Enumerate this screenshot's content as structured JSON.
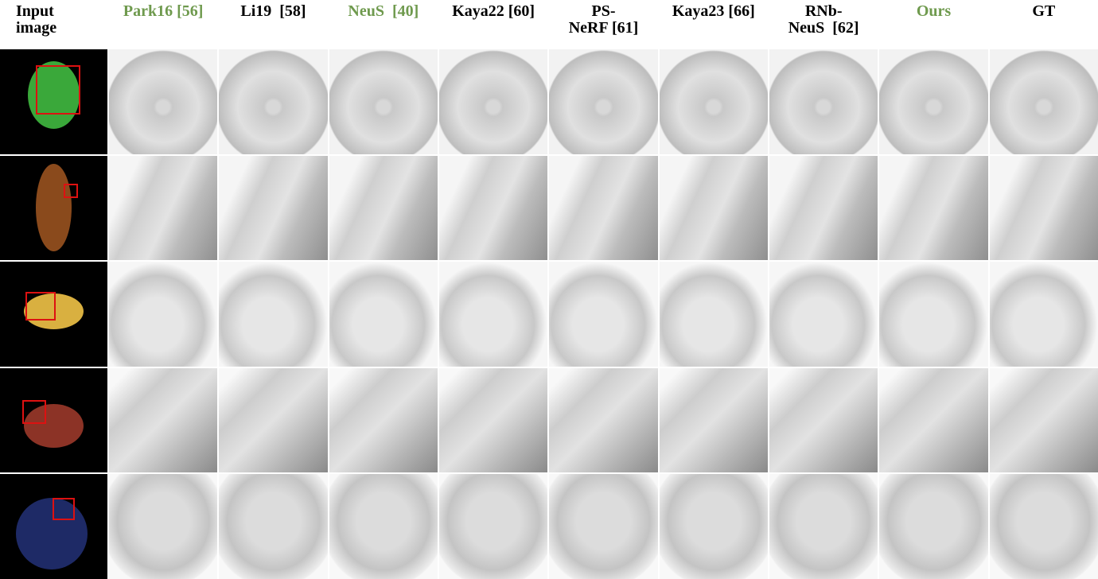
{
  "headers": [
    {
      "lines": [
        "Input",
        "image"
      ],
      "color": "#000000"
    },
    {
      "lines": [
        "Park16 [56]"
      ],
      "color": "#6f9a4e"
    },
    {
      "lines": [
        "Li19  [58]"
      ],
      "color": "#000000"
    },
    {
      "lines": [
        "NeuS  [40]"
      ],
      "color": "#6f9a4e"
    },
    {
      "lines": [
        "Kaya22 [60]"
      ],
      "color": "#000000"
    },
    {
      "lines": [
        "PS-",
        "NeRF [61]"
      ],
      "color": "#000000"
    },
    {
      "lines": [
        "Kaya23 [66]"
      ],
      "color": "#000000"
    },
    {
      "lines": [
        "RNb-",
        "NeuS  [62]"
      ],
      "color": "#000000"
    },
    {
      "lines": [
        "Ours"
      ],
      "color": "#6f9a4e"
    },
    {
      "lines": [
        "GT"
      ],
      "color": "#000000"
    }
  ]
}
